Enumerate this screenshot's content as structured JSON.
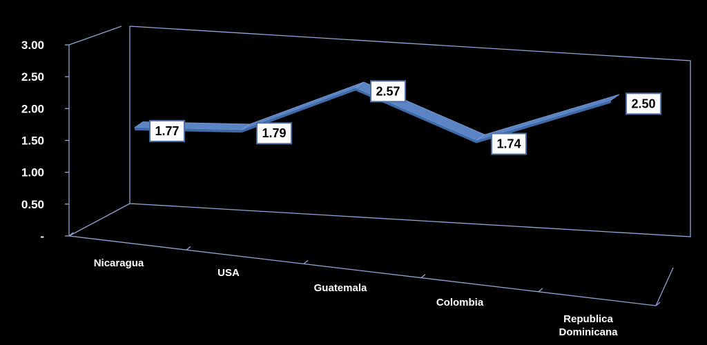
{
  "chart_data": {
    "type": "line",
    "style": "3d-ribbon",
    "categories": [
      "Nicaragua",
      "USA",
      "Guatemala",
      "Colombia",
      "Republica Dominicana"
    ],
    "values": [
      1.77,
      1.79,
      2.57,
      1.74,
      2.5
    ],
    "data_labels": [
      "1.77",
      "1.79",
      "2.57",
      "1.74",
      "2.50"
    ],
    "ylim": [
      0,
      3
    ],
    "yticks": [
      0,
      0.5,
      1,
      1.5,
      2,
      2.5,
      3
    ],
    "ytick_labels": [
      "-",
      "0.50",
      "1.00",
      "1.50",
      "2.00",
      "2.50",
      "3.00"
    ],
    "title": "",
    "xlabel": "",
    "ylabel": "",
    "grid": false,
    "legend": "none",
    "colors": {
      "background": "#000000",
      "ribbon_top": "#5b84c4",
      "ribbon_front": "#3f6aa8",
      "axes": "#8fa7d6",
      "text": "#ffffff",
      "label_box": "#ffffff",
      "label_border": "#4f6fa8"
    }
  }
}
